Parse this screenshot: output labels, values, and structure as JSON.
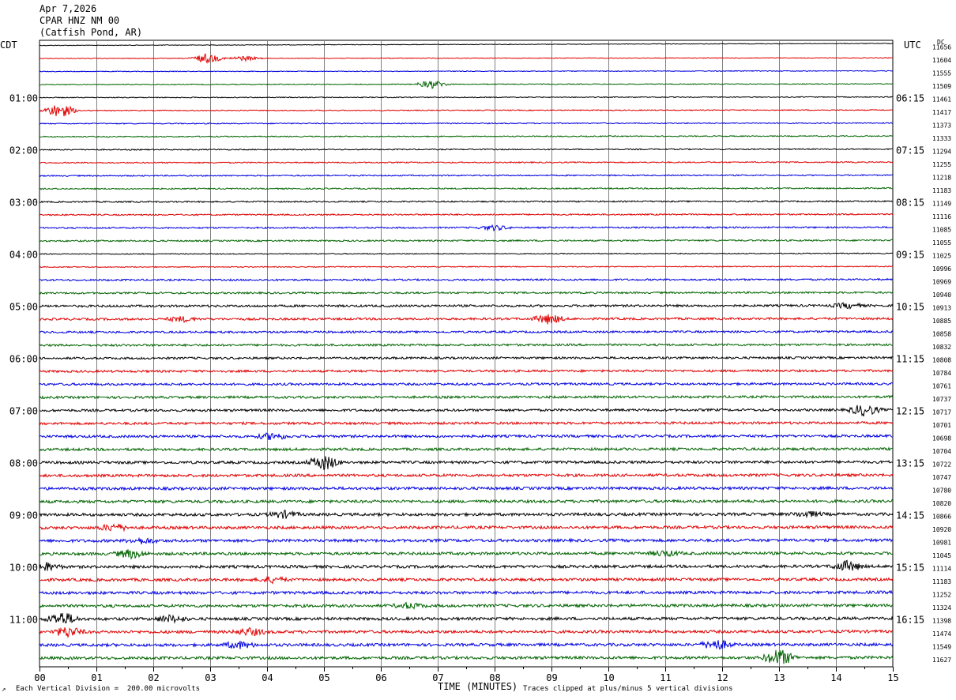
{
  "header": {
    "date": "Apr 7,2026",
    "station": "CPAR HNZ NM 00",
    "location": "(Catfish Pond, AR)"
  },
  "left_axis_label": "CDT",
  "right_axis_label": "UTC",
  "dc_label": "DC",
  "footer": {
    "left_mark": "↗",
    "scale_note": "Each Vertical Division =  200.00 microvolts",
    "xlabel": "TIME (MINUTES)",
    "clip_note": "Traces clipped at plus/minus 5 vertical divisions"
  },
  "chart_data": {
    "type": "line",
    "subtype": "helicorder",
    "xlabel": "TIME (MINUTES)",
    "x_ticks": [
      "00",
      "01",
      "02",
      "03",
      "04",
      "05",
      "06",
      "07",
      "08",
      "09",
      "10",
      "11",
      "12",
      "13",
      "14",
      "15"
    ],
    "xlim": [
      0,
      15
    ],
    "left_time_labels": [
      "01:00",
      "02:00",
      "03:00",
      "04:00",
      "05:00",
      "06:00",
      "07:00",
      "08:00",
      "09:00",
      "10:00",
      "11:00"
    ],
    "right_time_labels": [
      "06:15",
      "07:15",
      "08:15",
      "09:15",
      "10:15",
      "11:15",
      "12:15",
      "13:15",
      "14:15",
      "15:15",
      "16:15"
    ],
    "dc_values": [
      "11656",
      "11604",
      "11555",
      "11509",
      "11461",
      "11417",
      "11373",
      "11333",
      "11294",
      "11255",
      "11218",
      "11183",
      "11149",
      "11116",
      "11085",
      "11055",
      "11025",
      "10996",
      "10969",
      "10940",
      "10913",
      "10885",
      "10858",
      "10832",
      "10808",
      "10784",
      "10761",
      "10737",
      "10717",
      "10701",
      "10698",
      "10704",
      "10722",
      "10747",
      "10780",
      "10820",
      "10866",
      "10920",
      "10981",
      "11045",
      "11114",
      "11183",
      "11252",
      "11324",
      "11398",
      "11474",
      "11549",
      "11627"
    ],
    "trace_colors": [
      "#000000",
      "#e00000",
      "#0000e0",
      "#006400"
    ],
    "grid": true
  }
}
